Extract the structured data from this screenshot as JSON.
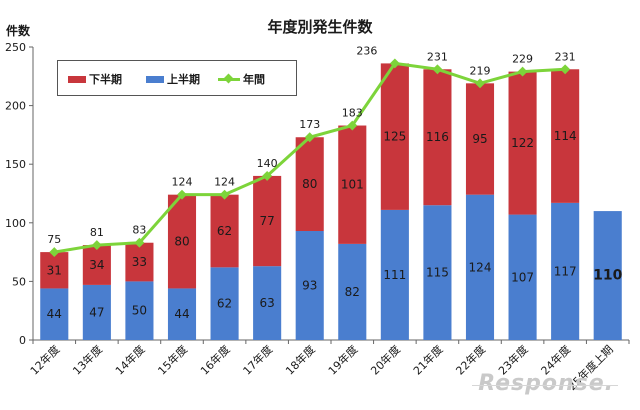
{
  "chart_data": {
    "type": "bar",
    "stacked": true,
    "title": "年度別発生件数",
    "ylabel": "件数",
    "ylim": [
      0,
      250
    ],
    "yticks": [
      0,
      50,
      100,
      150,
      200,
      250
    ],
    "categories": [
      "12年度",
      "13年度",
      "14年度",
      "15年度",
      "16年度",
      "17年度",
      "18年度",
      "19年度",
      "20年度",
      "21年度",
      "22年度",
      "23年度",
      "24年度",
      "25年度上期"
    ],
    "series": [
      {
        "name": "上半期",
        "type": "bar",
        "color": "#4a7ecf",
        "values": [
          44,
          47,
          50,
          44,
          62,
          63,
          93,
          82,
          111,
          115,
          124,
          107,
          117,
          110
        ]
      },
      {
        "name": "下半期",
        "type": "bar",
        "color": "#c8363c",
        "values": [
          31,
          34,
          33,
          80,
          62,
          77,
          80,
          101,
          125,
          116,
          95,
          122,
          114,
          null
        ]
      },
      {
        "name": "年間",
        "type": "line",
        "color": "#7dd43a",
        "values": [
          75,
          81,
          83,
          124,
          124,
          140,
          173,
          183,
          236,
          231,
          219,
          229,
          231,
          null
        ]
      }
    ],
    "legend": [
      "下半期",
      "上半期",
      "年間"
    ],
    "legend_position": "top-left",
    "grid": false
  },
  "watermark": "Response."
}
